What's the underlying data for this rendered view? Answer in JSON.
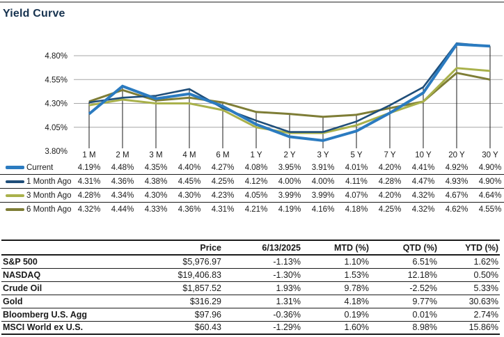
{
  "page": {
    "title": "Yield Curve"
  },
  "colors": {
    "title_navy": "#16324f",
    "text": "#1a1a1a",
    "gridline": "#a6a6a6",
    "drop_line": "#1a1a1a",
    "top_rule": "#8c8c8c",
    "current_blue": "#2b7bc0",
    "one_month_navy": "#1f4e79",
    "three_month_olive": "#a9b14b",
    "six_month_darkolive": "#7e7d36"
  },
  "chart_data": {
    "type": "line",
    "title": "Yield Curve",
    "xlabel": "",
    "ylabel": "",
    "grid": "horizontal",
    "legend_position": "bottom-table",
    "ylim": [
      3.8,
      4.8
    ],
    "categories": [
      "1 M",
      "2 M",
      "3 M",
      "4 M",
      "6 M",
      "1 Y",
      "2 Y",
      "3 Y",
      "5 Y",
      "7 Y",
      "10 Y",
      "20 Y",
      "30 Y"
    ],
    "y_ticks": [
      {
        "label": "4.80%",
        "value": 4.8,
        "gridline": true
      },
      {
        "label": "4.55%",
        "value": 4.55,
        "gridline": true
      },
      {
        "label": "4.30%",
        "value": 4.3,
        "gridline": true
      },
      {
        "label": "4.05%",
        "value": 4.05,
        "gridline": true
      },
      {
        "label": "3.80%",
        "value": 3.8,
        "gridline": false
      }
    ],
    "series": [
      {
        "name": "Current",
        "color": "#2b7bc0",
        "stroke_width": 4,
        "values": [
          4.19,
          4.48,
          4.35,
          4.4,
          4.27,
          4.08,
          3.95,
          3.91,
          4.01,
          4.2,
          4.41,
          4.92,
          4.9
        ]
      },
      {
        "name": "1 Month Ago",
        "color": "#1f4e79",
        "stroke_width": 2.6,
        "values": [
          4.31,
          4.36,
          4.38,
          4.45,
          4.25,
          4.12,
          4.0,
          4.0,
          4.11,
          4.28,
          4.47,
          4.93,
          4.9
        ]
      },
      {
        "name": "3 Month Ago",
        "color": "#a9b14b",
        "stroke_width": 3,
        "values": [
          4.28,
          4.34,
          4.3,
          4.3,
          4.23,
          4.05,
          3.99,
          3.99,
          4.07,
          4.2,
          4.32,
          4.67,
          4.64
        ]
      },
      {
        "name": "6 Month Ago",
        "color": "#7e7d36",
        "stroke_width": 3,
        "values": [
          4.32,
          4.44,
          4.33,
          4.36,
          4.31,
          4.21,
          4.19,
          4.16,
          4.18,
          4.25,
          4.32,
          4.62,
          4.55
        ]
      }
    ]
  },
  "market_table": {
    "headers": [
      "",
      "Price",
      "6/13/2025",
      "MTD (%)",
      "QTD (%)",
      "YTD (%)"
    ],
    "rows": [
      {
        "label": "S&P 500",
        "values": [
          "$5,976.97",
          "-1.13%",
          "1.10%",
          "6.51%",
          "1.62%"
        ]
      },
      {
        "label": "NASDAQ",
        "values": [
          "$19,406.83",
          "-1.30%",
          "1.53%",
          "12.18%",
          "0.50%"
        ]
      },
      {
        "label": "Crude Oil",
        "values": [
          "$1,857.52",
          "1.93%",
          "9.78%",
          "-2.52%",
          "5.33%"
        ]
      },
      {
        "label": "Gold",
        "values": [
          "$316.29",
          "1.31%",
          "4.18%",
          "9.77%",
          "30.63%"
        ]
      },
      {
        "label": "Bloomberg U.S. Agg",
        "values": [
          "$97.96",
          "-0.36%",
          "0.19%",
          "0.01%",
          "2.74%"
        ]
      },
      {
        "label": "MSCI World ex U.S.",
        "values": [
          "$60.43",
          "-1.29%",
          "1.60%",
          "8.98%",
          "15.86%"
        ]
      }
    ]
  }
}
